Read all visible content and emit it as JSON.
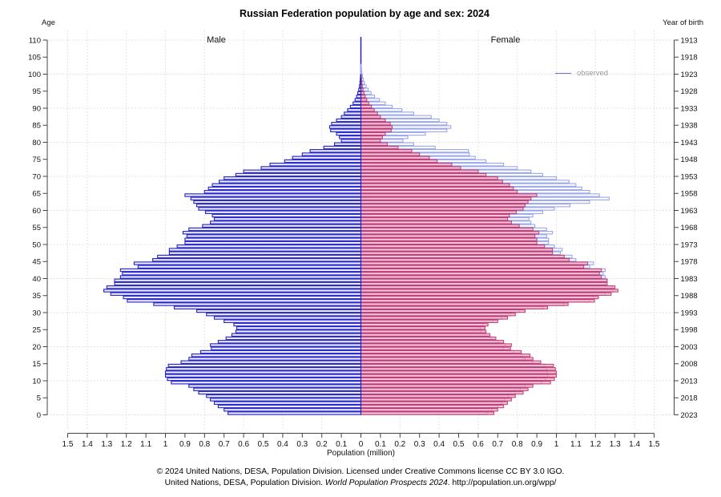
{
  "title": "Russian Federation population by age and sex: 2024",
  "labels": {
    "left_axis": "Age",
    "right_axis": "Year of birth",
    "x_axis": "Population (million)",
    "male": "Male",
    "female": "Female"
  },
  "legend": {
    "observed": "observed"
  },
  "footer": {
    "line1": "© 2024 United Nations, DESA, Population Division. Licensed under Creative Commons license CC BY 3.0 IGO.",
    "line2_prefix": "United Nations, DESA, Population Division. ",
    "line2_italic": "World Population Prospects 2024",
    "line2_suffix": ". http://population.un.org/wpp/"
  },
  "colors": {
    "male_stroke": "#2121c8",
    "male_fill": "#ecebfa",
    "female_stroke": "#9aa5ec",
    "female_fill": "#ffffff",
    "mirror_stroke": "rgba(186,45,100,0.85)",
    "mirror_fill": "rgba(243,160,193,0.65)",
    "center_line": "#2222bb",
    "grid": "#d8d8d8",
    "axis": "#444444",
    "legend_line": "#6673dd",
    "legend_text": "#999999"
  },
  "chart_data": {
    "type": "bar",
    "subtype": "population-pyramid",
    "title": "Russian Federation population by age and sex: 2024",
    "xlabel": "Population (million)",
    "xlim": [
      -1.5,
      1.5
    ],
    "x_tick_step": 0.1,
    "x_tick_labels_left_to_right": [
      "1.5",
      "1.4",
      "1.3",
      "1.2",
      "1.1",
      "1",
      "0.9",
      "0.8",
      "0.7",
      "0.6",
      "0.5",
      "0.4",
      "0.3",
      "0.2",
      "0.1",
      "0",
      "0.1",
      "0.2",
      "0.3",
      "0.4",
      "0.5",
      "0.6",
      "0.7",
      "0.8",
      "0.9",
      "1",
      "1.1",
      "1.2",
      "1.3",
      "1.4",
      "1.5"
    ],
    "age_ticks": [
      0,
      5,
      10,
      15,
      20,
      25,
      30,
      35,
      40,
      45,
      50,
      55,
      60,
      65,
      70,
      75,
      80,
      85,
      90,
      95,
      100,
      105,
      110
    ],
    "birth_year_ticks": [
      2023,
      2018,
      2013,
      2008,
      2003,
      1998,
      1993,
      1988,
      1983,
      1978,
      1973,
      1968,
      1963,
      1958,
      1953,
      1948,
      1943,
      1938,
      1933,
      1928,
      1923,
      1918,
      1913
    ],
    "v_gridlines_million": [
      0.2,
      0.4,
      0.6,
      0.8,
      1.0,
      1.2,
      1.4,
      1.5
    ],
    "h_gridline_age_step": 10,
    "legend_entries": [
      "observed"
    ],
    "legend_position": "right-inside",
    "grid": true,
    "ages": "0-110 by single year, index = age",
    "series": [
      {
        "name": "male",
        "side": "left",
        "values": [
          0.68,
          0.7,
          0.73,
          0.75,
          0.77,
          0.79,
          0.83,
          0.855,
          0.88,
          0.97,
          0.99,
          1.0,
          1.0,
          0.995,
          0.985,
          0.92,
          0.88,
          0.865,
          0.82,
          0.765,
          0.77,
          0.73,
          0.69,
          0.66,
          0.64,
          0.635,
          0.65,
          0.7,
          0.75,
          0.79,
          0.84,
          0.955,
          1.06,
          1.195,
          1.215,
          1.28,
          1.315,
          1.3,
          1.26,
          1.26,
          1.23,
          1.22,
          1.23,
          1.14,
          1.16,
          1.065,
          1.04,
          0.98,
          0.98,
          0.94,
          0.9,
          0.9,
          0.89,
          0.91,
          0.88,
          0.81,
          0.77,
          0.75,
          0.76,
          0.795,
          0.83,
          0.84,
          0.855,
          0.87,
          0.9,
          0.8,
          0.78,
          0.76,
          0.725,
          0.7,
          0.64,
          0.6,
          0.51,
          0.465,
          0.39,
          0.35,
          0.3,
          0.26,
          0.19,
          0.135,
          0.1,
          0.11,
          0.125,
          0.155,
          0.16,
          0.15,
          0.125,
          0.1,
          0.085,
          0.068,
          0.054,
          0.04,
          0.03,
          0.022,
          0.016,
          0.011,
          0.0075,
          0.005,
          0.0032,
          0.002,
          0.0013,
          0.0008,
          0.0005,
          0.0003,
          0.0002,
          0.00012,
          7e-05,
          4e-05,
          2e-05,
          1e-05,
          1e-05
        ]
      },
      {
        "name": "female",
        "side": "right",
        "values": [
          0.645,
          0.67,
          0.7,
          0.72,
          0.735,
          0.755,
          0.79,
          0.815,
          0.84,
          0.925,
          0.945,
          0.955,
          0.955,
          0.95,
          0.94,
          0.88,
          0.84,
          0.825,
          0.78,
          0.73,
          0.74,
          0.705,
          0.665,
          0.635,
          0.615,
          0.61,
          0.625,
          0.675,
          0.72,
          0.765,
          0.81,
          0.93,
          1.04,
          1.17,
          1.19,
          1.25,
          1.29,
          1.285,
          1.25,
          1.26,
          1.25,
          1.24,
          1.25,
          1.17,
          1.19,
          1.1,
          1.08,
          1.02,
          1.03,
          0.99,
          0.96,
          0.96,
          0.95,
          0.98,
          0.95,
          0.89,
          0.87,
          0.86,
          0.88,
          0.93,
          0.99,
          1.07,
          1.17,
          1.27,
          1.22,
          1.17,
          1.13,
          1.1,
          1.065,
          1.0,
          0.93,
          0.87,
          0.8,
          0.73,
          0.64,
          0.585,
          0.555,
          0.55,
          0.38,
          0.27,
          0.215,
          0.24,
          0.33,
          0.44,
          0.46,
          0.44,
          0.4,
          0.36,
          0.27,
          0.21,
          0.16,
          0.125,
          0.095,
          0.07,
          0.052,
          0.038,
          0.027,
          0.018,
          0.012,
          0.008,
          0.005,
          0.003,
          0.002,
          0.0013,
          0.0008,
          0.0005,
          0.0003,
          0.0002,
          0.0001,
          6e-05,
          3e-05
        ]
      },
      {
        "name": "male-mirrored-on-female-side",
        "side": "right-overlay",
        "values_ref": "male"
      }
    ]
  }
}
